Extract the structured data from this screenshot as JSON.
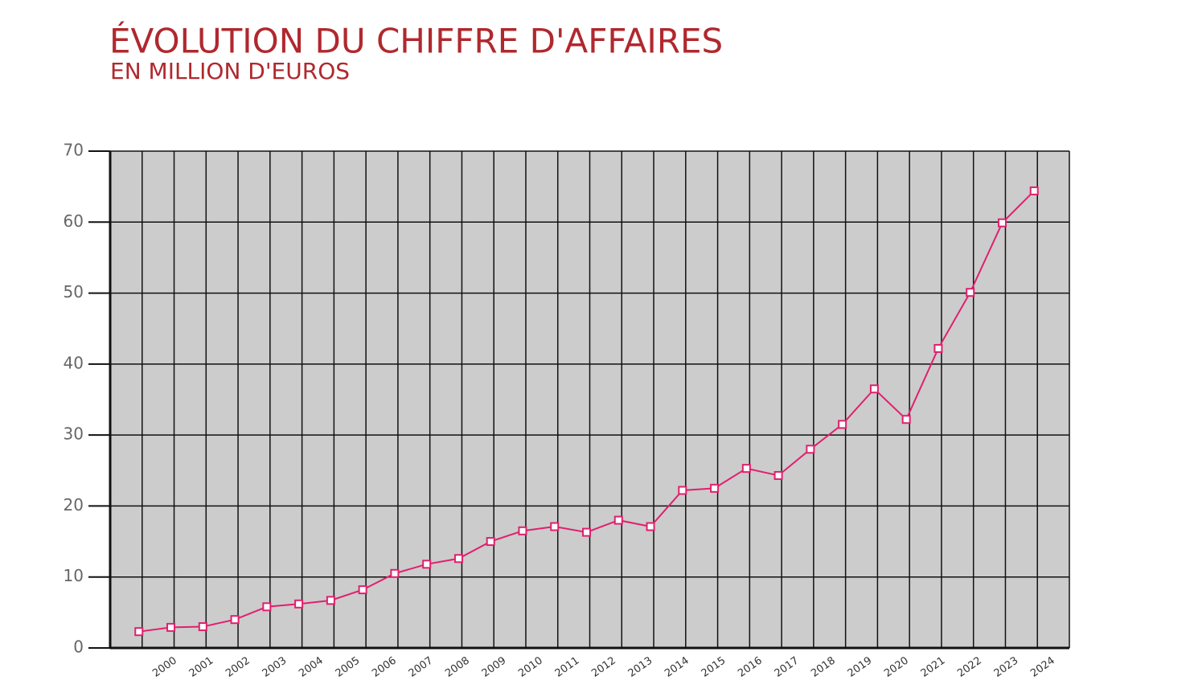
{
  "chart_data": {
    "type": "line",
    "title": "ÉVOLUTION DU CHIFFRE D'AFFAIRES",
    "subtitle": "EN MILLION D'EUROS",
    "categories": [
      null,
      null,
      null,
      null,
      "2000",
      "2001",
      "2002",
      "2003",
      "2004",
      "2005",
      "2006",
      "2007",
      "2008",
      "2009",
      "2010",
      "2011",
      "2012",
      "2013",
      "2014",
      "2015",
      "2016",
      "2017",
      "2018",
      "2019",
      "2020",
      "2021",
      "2022",
      "2023",
      "2024"
    ],
    "values": [
      2.3,
      2.9,
      3.0,
      4.0,
      5.8,
      6.2,
      6.7,
      8.2,
      10.5,
      11.8,
      12.6,
      15.0,
      16.5,
      17.1,
      16.3,
      18.0,
      17.1,
      22.2,
      22.5,
      25.3,
      24.3,
      28.0,
      31.5,
      36.5,
      32.2,
      42.2,
      50.1,
      59.9,
      64.4
    ],
    "color": "#e0206e",
    "ylim": [
      0,
      70
    ],
    "yticks": [
      0,
      10,
      20,
      30,
      40,
      50,
      60,
      70
    ],
    "grid": true
  }
}
